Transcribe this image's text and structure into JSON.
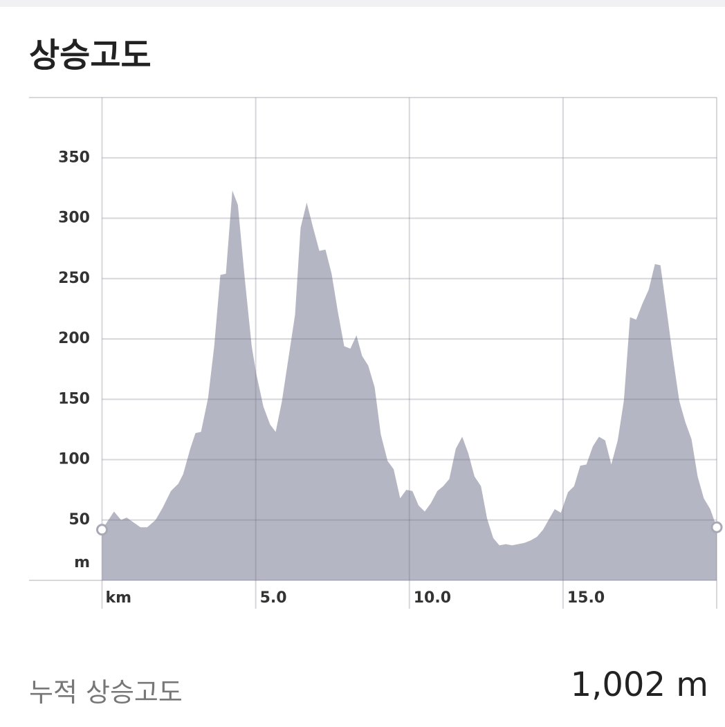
{
  "header": {
    "title": "상승고도"
  },
  "chart_data": {
    "type": "area",
    "x": [
      0,
      0.39,
      0.62,
      0.8,
      1.25,
      1.47,
      1.74,
      1.97,
      2.24,
      2.48,
      2.64,
      2.87,
      3.04,
      3.22,
      3.45,
      3.65,
      3.85,
      4.03,
      4.24,
      4.42,
      4.64,
      4.87,
      5.02,
      5.25,
      5.47,
      5.65,
      5.85,
      6.28,
      6.46,
      6.66,
      6.87,
      7.07,
      7.27,
      7.47,
      7.67,
      7.88,
      8.08,
      8.28,
      8.46,
      8.66,
      8.87,
      9.07,
      9.29,
      9.49,
      9.7,
      9.9,
      10.1,
      10.3,
      10.5,
      10.7,
      10.91,
      11.1,
      11.3,
      11.51,
      11.72,
      11.92,
      12.12,
      12.33,
      12.53,
      12.73,
      12.93,
      13.14,
      13.34,
      13.54,
      13.74,
      13.94,
      14.15,
      14.35,
      14.55,
      14.73,
      14.93,
      15.16,
      15.36,
      15.56,
      15.76,
      15.97,
      16.17,
      16.37,
      16.57,
      16.78,
      16.98,
      17.18,
      17.38,
      17.58,
      17.79,
      17.99,
      18.17,
      18.37,
      18.58,
      18.78,
      18.98,
      19.18,
      19.38,
      19.58,
      19.79,
      20
    ],
    "values": [
      42,
      57,
      50,
      52,
      44,
      44,
      50,
      60,
      74,
      80,
      88,
      109,
      122,
      123,
      151,
      194,
      253,
      254,
      323,
      311,
      251,
      194,
      171,
      144,
      129,
      123,
      148,
      220,
      292,
      313,
      292,
      273,
      274,
      254,
      223,
      194,
      192,
      203,
      186,
      178,
      160,
      121,
      99,
      92,
      68,
      75,
      74,
      62,
      57,
      64,
      74,
      78,
      84,
      109,
      119,
      105,
      86,
      78,
      51,
      35,
      29,
      30,
      29,
      30,
      31,
      33,
      36,
      42,
      51,
      59,
      56,
      73,
      78,
      95,
      96,
      111,
      119,
      116,
      96,
      116,
      149,
      218,
      216,
      229,
      241,
      262,
      261,
      224,
      184,
      149,
      131,
      117,
      86,
      68,
      59,
      44
    ],
    "color": "#b5b6c3",
    "xlim": [
      0,
      20
    ],
    "ylim": [
      0,
      400
    ],
    "xticks": [
      {
        "value": 5,
        "label": "5.0"
      },
      {
        "value": 10,
        "label": "10.0"
      },
      {
        "value": 15,
        "label": "15.0"
      }
    ],
    "yticks": [
      50,
      100,
      150,
      200,
      250,
      300,
      350
    ],
    "x_unit": "km",
    "y_unit": "m",
    "grid": true
  },
  "summary": {
    "label": "누적 상승고도",
    "value": "1,002 m"
  }
}
